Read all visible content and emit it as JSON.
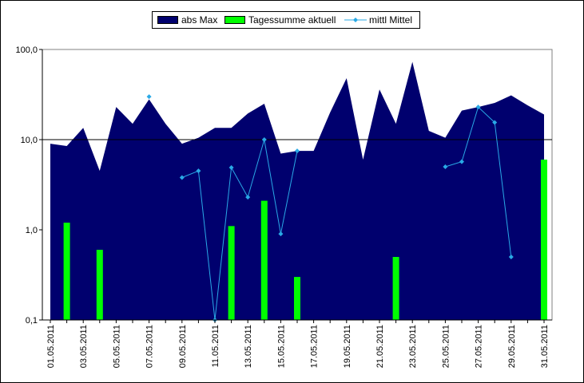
{
  "chart_data": {
    "type": "bar",
    "y_scale": "log",
    "ylim": [
      0.1,
      100
    ],
    "y_ticks": [
      "0,1",
      "1,0",
      "10,0",
      "100,0"
    ],
    "y_tick_values": [
      0.1,
      1,
      10,
      100
    ],
    "gridlines_at": [
      10
    ],
    "legend_position": "top",
    "colors": {
      "abs_max": "#00006E",
      "tagessumme": "#00FF00",
      "mittel": "#29A9E6",
      "plot_bg": "#FFFFFF"
    },
    "x_tick_labels": [
      "01.05.2011",
      "03.05.2011",
      "05.05.2011",
      "07.05.2011",
      "09.05.2011",
      "11.05.2011",
      "13.05.2011",
      "15.05.2011",
      "17.05.2011",
      "19.05.2011",
      "21.05.2011",
      "23.05.2011",
      "25.05.2011",
      "27.05.2011",
      "29.05.2011",
      "31.05.2011"
    ],
    "series": [
      {
        "name": "abs Max",
        "kind": "area",
        "values": [
          9.0,
          8.5,
          13.5,
          4.5,
          23.0,
          15.0,
          28.0,
          15.0,
          9.0,
          10.5,
          13.5,
          13.5,
          19.5,
          25.0,
          7.0,
          7.5,
          7.5,
          20.0,
          48.0,
          6.0,
          36.0,
          15.0,
          73.0,
          12.5,
          10.5,
          21.0,
          23.0,
          25.5,
          31.0,
          24.0,
          19.0
        ]
      },
      {
        "name": "Tagessumme aktuell",
        "kind": "bar",
        "values": [
          null,
          1.2,
          null,
          0.6,
          null,
          null,
          null,
          null,
          null,
          null,
          null,
          1.1,
          null,
          2.1,
          null,
          0.3,
          null,
          null,
          null,
          null,
          null,
          0.5,
          null,
          null,
          null,
          null,
          null,
          null,
          null,
          null,
          6.0
        ]
      },
      {
        "name": "mittl Mittel",
        "kind": "line",
        "values": [
          null,
          null,
          null,
          null,
          null,
          null,
          30.0,
          null,
          3.8,
          4.5,
          0.1,
          4.9,
          2.3,
          10.0,
          0.9,
          7.5,
          null,
          null,
          null,
          null,
          null,
          null,
          null,
          null,
          5.0,
          5.7,
          23.0,
          15.5,
          0.5,
          null,
          null
        ]
      }
    ]
  }
}
